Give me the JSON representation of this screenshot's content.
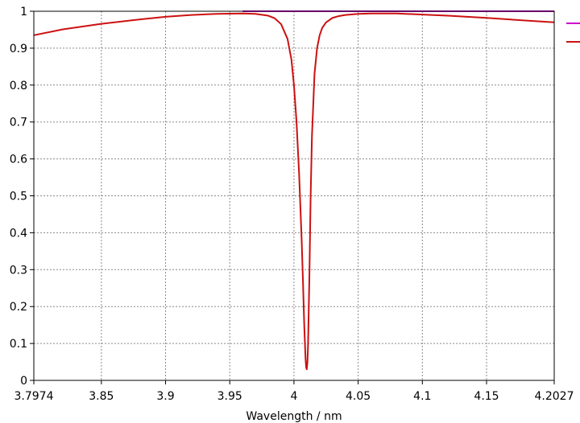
{
  "chart_data": {
    "type": "line",
    "title": "",
    "xlabel": "Wavelength / nm",
    "ylabel": "",
    "xlim": [
      3.7974,
      4.2027
    ],
    "ylim": [
      0,
      1
    ],
    "xticks": [
      3.7974,
      3.85,
      3.9,
      3.95,
      4,
      4.05,
      4.1,
      4.15,
      4.2027
    ],
    "xtick_labels": [
      "3.7974",
      "3.85",
      "3.9",
      "3.95",
      "4",
      "4.05",
      "4.1",
      "4.15",
      "4.2027"
    ],
    "yticks": [
      0,
      0.1,
      0.2,
      0.3,
      0.4,
      0.5,
      0.6,
      0.7,
      0.8,
      0.9,
      1
    ],
    "ytick_labels": [
      "0",
      "0.1",
      "0.2",
      "0.3",
      "0.4",
      "0.5",
      "0.6",
      "0.7",
      "0.8",
      "0.9",
      "1"
    ],
    "grid": true,
    "legend_placement": "right",
    "series": [
      {
        "color": "#cc00cc",
        "x": [
          3.96,
          4.2027
        ],
        "y": [
          1.0,
          1.0
        ]
      },
      {
        "color": "#cc1111",
        "x": [
          3.7974,
          3.82,
          3.85,
          3.88,
          3.9,
          3.92,
          3.94,
          3.96,
          3.97,
          3.98,
          3.985,
          3.99,
          3.995,
          3.998,
          4.0,
          4.002,
          4.004,
          4.006,
          4.007,
          4.008,
          4.009,
          4.0095,
          4.01,
          4.0105,
          4.011,
          4.012,
          4.013,
          4.014,
          4.016,
          4.018,
          4.02,
          4.022,
          4.025,
          4.03,
          4.035,
          4.04,
          4.05,
          4.06,
          4.08,
          4.1,
          4.12,
          4.15,
          4.18,
          4.2027
        ],
        "y": [
          0.935,
          0.951,
          0.966,
          0.978,
          0.985,
          0.99,
          0.993,
          0.994,
          0.993,
          0.988,
          0.981,
          0.965,
          0.925,
          0.87,
          0.8,
          0.7,
          0.56,
          0.38,
          0.27,
          0.15,
          0.06,
          0.035,
          0.03,
          0.05,
          0.1,
          0.28,
          0.5,
          0.66,
          0.83,
          0.9,
          0.935,
          0.955,
          0.97,
          0.982,
          0.987,
          0.99,
          0.993,
          0.994,
          0.994,
          0.991,
          0.988,
          0.982,
          0.975,
          0.97
        ]
      }
    ]
  }
}
